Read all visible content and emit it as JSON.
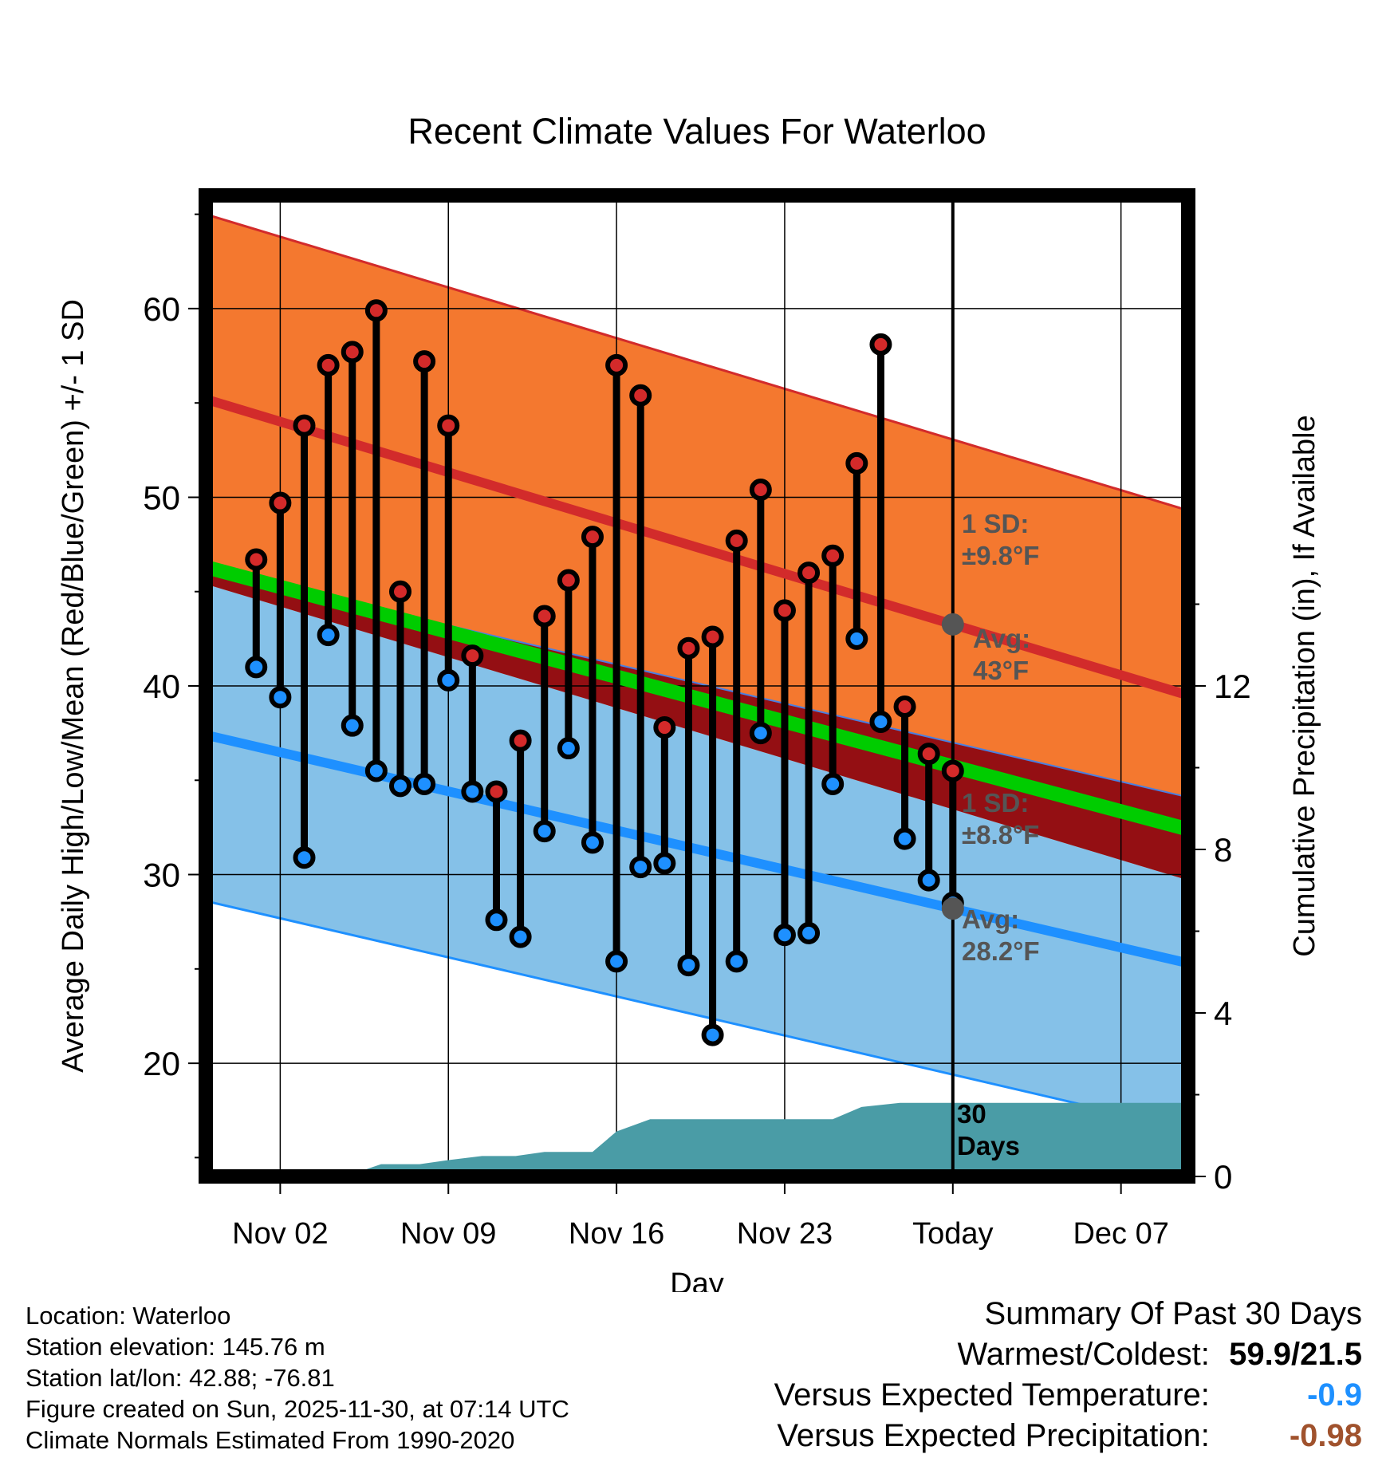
{
  "title": "Recent Climate Values For Waterloo",
  "chart_data": {
    "type": "line",
    "title": "Recent Climate Values For Waterloo",
    "xlabel": "Day",
    "ylabel": "Average Daily High/Low/Mean (Red/Blue/Green) +/- 1 SD",
    "y2label": "Cumulative Precipitation (in), If Available",
    "x_ticks": [
      "Nov 02",
      "Nov 09",
      "Nov 16",
      "Nov 23",
      "Today",
      "Dec 07"
    ],
    "x_tick_days": [
      2,
      9,
      16,
      23,
      30,
      37
    ],
    "xlim": [
      -1.1,
      39.8
    ],
    "ylim": [
      14,
      66
    ],
    "y_ticks": [
      20,
      30,
      40,
      50,
      60
    ],
    "y2lim": [
      0,
      24
    ],
    "y2_ticks": [
      0,
      4,
      8,
      12
    ],
    "today_day": 30,
    "normals": {
      "high_avg_start": 55.2,
      "high_avg_end": 39.5,
      "high_sd": 9.8,
      "low_avg_start": 37.4,
      "low_avg_end": 25.3,
      "low_sd": 8.8,
      "mean_avg_start": 46.3,
      "mean_avg_end": 32.4
    },
    "daily": [
      {
        "day": 1,
        "high": 46.7,
        "low": 41.0
      },
      {
        "day": 2,
        "high": 49.7,
        "low": 39.4
      },
      {
        "day": 3,
        "high": 53.8,
        "low": 30.9
      },
      {
        "day": 4,
        "high": 57.0,
        "low": 42.7
      },
      {
        "day": 5,
        "high": 57.7,
        "low": 37.9
      },
      {
        "day": 6,
        "high": 59.9,
        "low": 35.5
      },
      {
        "day": 7,
        "high": 45.0,
        "low": 34.7
      },
      {
        "day": 8,
        "high": 57.2,
        "low": 34.8
      },
      {
        "day": 9,
        "high": 53.8,
        "low": 40.3
      },
      {
        "day": 10,
        "high": 41.6,
        "low": 34.4
      },
      {
        "day": 11,
        "high": 34.4,
        "low": 27.6
      },
      {
        "day": 12,
        "high": 37.1,
        "low": 26.7
      },
      {
        "day": 13,
        "high": 43.7,
        "low": 32.3
      },
      {
        "day": 14,
        "high": 45.6,
        "low": 36.7
      },
      {
        "day": 15,
        "high": 47.9,
        "low": 31.7
      },
      {
        "day": 16,
        "high": 57.0,
        "low": 25.4
      },
      {
        "day": 17,
        "high": 55.4,
        "low": 30.4
      },
      {
        "day": 18,
        "high": 37.8,
        "low": 30.6
      },
      {
        "day": 19,
        "high": 42.0,
        "low": 25.2
      },
      {
        "day": 20,
        "high": 42.6,
        "low": 21.5
      },
      {
        "day": 21,
        "high": 47.7,
        "low": 25.4
      },
      {
        "day": 22,
        "high": 50.4,
        "low": 37.5
      },
      {
        "day": 23,
        "high": 44.0,
        "low": 26.8
      },
      {
        "day": 24,
        "high": 46.0,
        "low": 26.9
      },
      {
        "day": 25,
        "high": 46.9,
        "low": 34.8
      },
      {
        "day": 26,
        "high": 51.8,
        "low": 42.5
      },
      {
        "day": 27,
        "high": 58.1,
        "low": 38.1
      },
      {
        "day": 28,
        "high": 38.9,
        "low": 31.9
      },
      {
        "day": 29,
        "high": 36.4,
        "low": 29.7
      },
      {
        "day": 30,
        "high": 35.5,
        "low": 28.5
      }
    ],
    "precip_cumulative": [
      {
        "day": -1.1,
        "in": 0.0
      },
      {
        "day": 2.6,
        "in": 0.0
      },
      {
        "day": 4.0,
        "in": 0.1
      },
      {
        "day": 5.2,
        "in": 0.1
      },
      {
        "day": 6.2,
        "in": 0.3
      },
      {
        "day": 7.8,
        "in": 0.3
      },
      {
        "day": 9.0,
        "in": 0.4
      },
      {
        "day": 10.4,
        "in": 0.5
      },
      {
        "day": 11.8,
        "in": 0.5
      },
      {
        "day": 13.0,
        "in": 0.6
      },
      {
        "day": 15.0,
        "in": 0.6
      },
      {
        "day": 16.0,
        "in": 1.1
      },
      {
        "day": 17.4,
        "in": 1.4
      },
      {
        "day": 25.0,
        "in": 1.4
      },
      {
        "day": 26.2,
        "in": 1.7
      },
      {
        "day": 27.8,
        "in": 1.8
      },
      {
        "day": 30.0,
        "in": 1.8
      },
      {
        "day": 39.8,
        "in": 1.8
      }
    ],
    "annotations": {
      "high_sd": [
        "1 SD:",
        "±9.8°F"
      ],
      "high_avg": [
        "Avg:",
        "43°F"
      ],
      "low_sd": [
        "1 SD:",
        "±8.8°F"
      ],
      "low_avg": [
        "Avg:",
        "28.2°F"
      ],
      "days": [
        "30",
        "Days"
      ]
    },
    "colors": {
      "high_band": "#f4782f",
      "high_line": "#d22b2b",
      "low_band": "#85c1e8",
      "low_line": "#1e90ff",
      "overlap": "#940f13",
      "mean": "#00cc00",
      "precip": "#4a9ca6",
      "annotation": "#555555"
    }
  },
  "info": {
    "location": "Location: Waterloo",
    "elevation": "Station elevation: 145.76 m",
    "latlon": "Station lat/lon: 42.88; -76.81",
    "created": "Figure created on Sun, 2025-11-30, at 07:14 UTC",
    "normals": "Climate Normals Estimated From 1990-2020"
  },
  "summary": {
    "title": "Summary Of Past 30 Days",
    "warm_cold_label": "Warmest/Coldest:",
    "warm_cold_value": "59.9/21.5",
    "temp_label": "Versus Expected Temperature:",
    "temp_value": "-0.9",
    "precip_label": "Versus Expected Precipitation:",
    "precip_value": "-0.98"
  }
}
